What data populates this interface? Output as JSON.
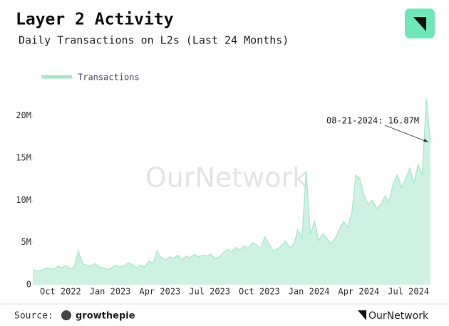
{
  "chart_data": {
    "type": "area",
    "title": "Layer 2 Activity",
    "subtitle": "Daily Transactions on L2s (Last 24 Months)",
    "categories": [
      null,
      null,
      null,
      null,
      null,
      null,
      "Oct 2022",
      null,
      null,
      null,
      null,
      null,
      null,
      null,
      null,
      null,
      null,
      null,
      "Jan 2023",
      null,
      null,
      null,
      null,
      null,
      null,
      null,
      null,
      null,
      null,
      null,
      "Apr 2023",
      null,
      null,
      null,
      null,
      null,
      null,
      null,
      null,
      null,
      null,
      null,
      "Jul 2023",
      null,
      null,
      null,
      null,
      null,
      null,
      null,
      null,
      null,
      null,
      null,
      "Oct 2023",
      null,
      null,
      null,
      null,
      null,
      null,
      null,
      null,
      null,
      null,
      null,
      "Jan 2024",
      null,
      null,
      null,
      null,
      null,
      null,
      null,
      null,
      null,
      null,
      null,
      "Apr 2024",
      null,
      null,
      null,
      null,
      null,
      null,
      null,
      null,
      null,
      null,
      null,
      "Jul 2024",
      null,
      null,
      null,
      null,
      null,
      null
    ],
    "series": [
      {
        "name": "Transactions",
        "color": "#a3e6cb",
        "fill": "#cdf1e2",
        "values": [
          1.8,
          1.6,
          1.7,
          1.9,
          2.0,
          1.8,
          2.2,
          2.0,
          2.3,
          1.9,
          2.1,
          4.0,
          2.5,
          2.3,
          2.2,
          2.5,
          2.1,
          2.0,
          1.8,
          2.0,
          2.3,
          2.1,
          2.2,
          2.6,
          2.4,
          2.0,
          2.3,
          2.1,
          2.8,
          2.5,
          4.0,
          3.2,
          2.9,
          3.3,
          3.1,
          3.5,
          2.9,
          3.4,
          3.2,
          3.6,
          3.3,
          3.5,
          3.4,
          3.6,
          3.1,
          3.3,
          3.8,
          4.2,
          3.9,
          4.4,
          4.1,
          4.6,
          4.3,
          5.0,
          4.7,
          4.3,
          5.7,
          4.8,
          4.0,
          4.2,
          4.6,
          5.2,
          4.4,
          4.8,
          6.5,
          5.5,
          13.5,
          6.0,
          7.5,
          5.2,
          6.0,
          5.5,
          4.8,
          5.5,
          6.5,
          7.5,
          6.8,
          8.5,
          13.0,
          12.5,
          10.5,
          9.5,
          10.0,
          9.0,
          9.5,
          10.5,
          9.8,
          12.0,
          13.0,
          11.5,
          12.5,
          13.8,
          12.0,
          14.2,
          13.0,
          22.0,
          16.87
        ]
      }
    ],
    "ylim": [
      0,
      22.5
    ],
    "yticks": [
      0,
      {
        "value": 5,
        "label": "5M"
      },
      {
        "value": 10,
        "label": "10M"
      },
      {
        "value": 15,
        "label": "15M"
      },
      {
        "value": 20,
        "label": "20M"
      }
    ],
    "annotation": "08-21-2024: 16.87M",
    "legend": "top-left"
  },
  "watermark": "OurNetwork",
  "footer": {
    "source_label": "Source:",
    "source": "growthepie",
    "brand": "OurNetwork"
  }
}
